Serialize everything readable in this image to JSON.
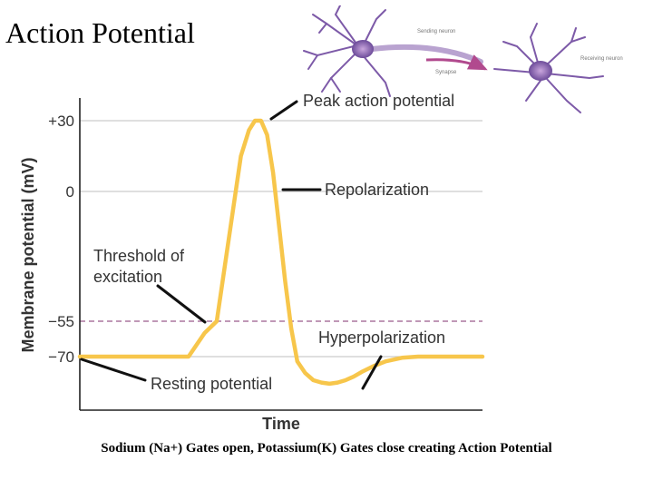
{
  "slide": {
    "title": "Action Potential",
    "caption": "Sodium (Na+) Gates open, Potassium(K) Gates close creating Action Potential"
  },
  "illustration": {
    "labels": {
      "sending": "Sending neuron",
      "receiving": "Receiving neuron",
      "synapse": "Synapse"
    }
  },
  "chart_data": {
    "type": "line",
    "title": "",
    "xlabel": "Time",
    "ylabel": "Membrane potential (mV)",
    "ylim": [
      -85,
      52
    ],
    "xlim": [
      0,
      100
    ],
    "yticks": [
      {
        "value": 30,
        "label": "+30"
      },
      {
        "value": 0,
        "label": "0"
      },
      {
        "value": -55,
        "label": "−55"
      },
      {
        "value": -70,
        "label": "−70"
      }
    ],
    "grid": true,
    "threshold": -55,
    "series": [
      {
        "color": "#f7c64b",
        "x": [
          0,
          27,
          31,
          34,
          37,
          40,
          42,
          43.5,
          45,
          46.5,
          48,
          49.5,
          51,
          52.5,
          54,
          56,
          58,
          60,
          62,
          64,
          66,
          68,
          70,
          73,
          76,
          80,
          84,
          88,
          92,
          96,
          100
        ],
        "y": [
          -70,
          -70,
          -60,
          -55,
          -20,
          15,
          26,
          30,
          30,
          24,
          8,
          -15,
          -38,
          -58,
          -72,
          -77,
          -80,
          -81,
          -81.5,
          -81,
          -80,
          -78.5,
          -76.5,
          -74,
          -72,
          -70.5,
          -70,
          -70,
          -70,
          -70,
          -70
        ]
      }
    ],
    "annotations": [
      "Peak action potential",
      "Repolarization",
      "Threshold of excitation",
      "Hyperpolarization",
      "Resting potential"
    ],
    "colors": {
      "curve": "#f7c64b",
      "threshold_line": "#9b5a8c",
      "grid": "#cccccc"
    }
  }
}
